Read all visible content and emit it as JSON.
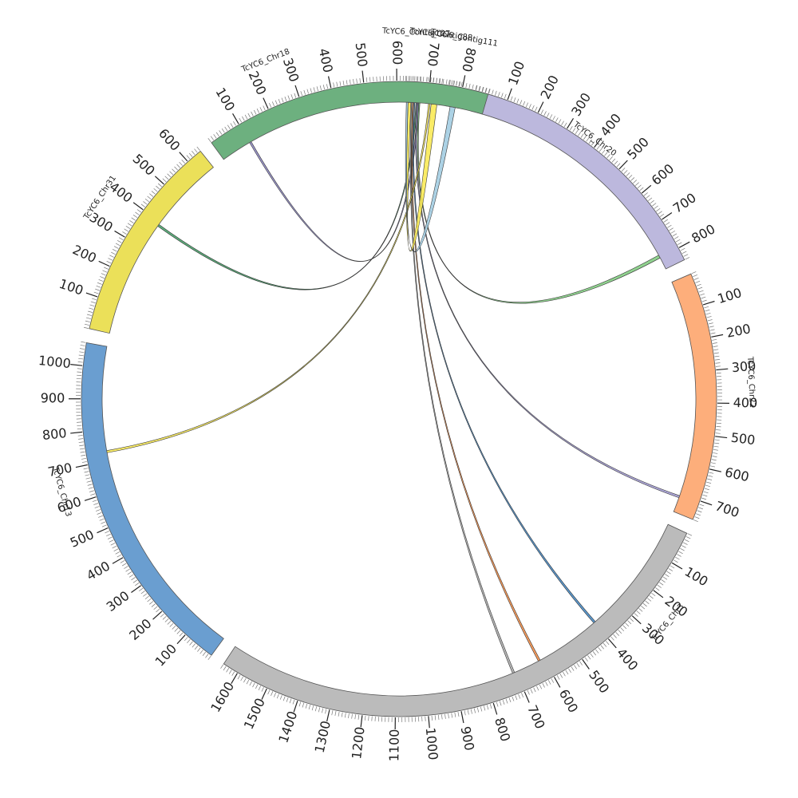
{
  "chart_data": {
    "type": "chord",
    "segments": [
      {
        "id": "tig",
        "name": "TcYC6_Contig127",
        "length": 55,
        "color": "#9ecae1",
        "tick_labels": []
      },
      {
        "id": "c1",
        "name": "TcYC6_Contig88",
        "length": 55,
        "color": "#fbf17a",
        "tick_labels": []
      },
      {
        "id": "c2",
        "name": "TcYC6_Contig111",
        "length": 55,
        "color": "#a1d99b",
        "tick_labels": []
      },
      {
        "id": "chr20",
        "name": "TcYC6_Chr20",
        "length": 840,
        "color": "#bcb8dd",
        "tick_labels": [
          100,
          200,
          300,
          400,
          500,
          600,
          700,
          800
        ]
      },
      {
        "id": "chr22",
        "name": "TcYC6_Chr22",
        "length": 760,
        "color": "#fdae7b",
        "tick_labels": [
          100,
          200,
          300,
          400,
          500,
          600,
          700
        ]
      },
      {
        "id": "chr3",
        "name": "TcYC6_Chr3",
        "length": 1650,
        "color": "#bbbbbb",
        "tick_labels": [
          100,
          200,
          300,
          400,
          500,
          600,
          700,
          800,
          900,
          1000,
          1100,
          1200,
          1300,
          1400,
          1500,
          1600
        ]
      },
      {
        "id": "chr13",
        "name": "TcYC6_Chr13",
        "length": 1070,
        "color": "#6a9ed0",
        "tick_labels": [
          100,
          200,
          300,
          400,
          500,
          600,
          700,
          800,
          900,
          1000
        ]
      },
      {
        "id": "chr31",
        "name": "TcYC6_Chr31",
        "length": 650,
        "color": "#ebe059",
        "tick_labels": [
          100,
          200,
          300,
          400,
          500,
          600
        ]
      },
      {
        "id": "chr18",
        "name": "TcYC6_Chr18",
        "length": 880,
        "color": "#6db07f",
        "tick_labels": [
          100,
          200,
          300,
          400,
          500,
          600,
          700,
          800
        ]
      }
    ],
    "links": [
      {
        "from": "tig",
        "from_pos": [
          45,
          50
        ],
        "to": "chr18",
        "to_pos": [
          100,
          106
        ],
        "color": "#8c86c6"
      },
      {
        "from": "tig",
        "from_pos": [
          38,
          42
        ],
        "to": "chr31",
        "to_pos": [
          385,
          392
        ],
        "color": "#41a266"
      },
      {
        "from": "tig",
        "from_pos": [
          48,
          52
        ],
        "to": "chr20",
        "to_pos": [
          790,
          800
        ],
        "color": "#7dca7b"
      },
      {
        "from": "tig",
        "from_pos": [
          40,
          44
        ],
        "to": "chr22",
        "to_pos": [
          705,
          712
        ],
        "color": "#9e96d0"
      },
      {
        "from": "tig",
        "from_pos": [
          30,
          34
        ],
        "to": "chr3",
        "to_pos": [
          395,
          402
        ],
        "color": "#3e86c5"
      },
      {
        "from": "tig",
        "from_pos": [
          26,
          30
        ],
        "to": "chr3",
        "to_pos": [
          613,
          620
        ],
        "color": "#f58a40"
      },
      {
        "from": "tig",
        "from_pos": [
          22,
          26
        ],
        "to": "chr3",
        "to_pos": [
          705,
          712
        ],
        "color": "#aaaaaa"
      },
      {
        "from": "c1",
        "from_pos": [
          10,
          16
        ],
        "to": "chr13",
        "to_pos": [
          725,
          732
        ],
        "color": "#f9e94c"
      },
      {
        "from": "c1",
        "from_pos": [
          20,
          42
        ],
        "to": "tig",
        "from_end": true,
        "to_pos": [
          10,
          20
        ],
        "color": "#f9e94c"
      },
      {
        "from": "c2",
        "from_pos": [
          20,
          42
        ],
        "to": "tig",
        "to_pos": [
          4,
          10
        ],
        "color": "#9ecae1"
      }
    ]
  }
}
